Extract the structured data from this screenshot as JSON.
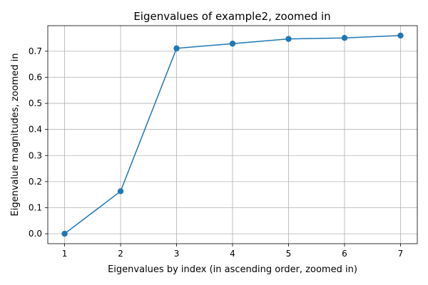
{
  "chart_data": {
    "type": "line",
    "title": "Eigenvalues of example2, zoomed in",
    "xlabel": "Eigenvalues by index (in ascending order, zoomed in)",
    "ylabel": "Eigenvalue magnitudes, zoomed in",
    "x": [
      1,
      2,
      3,
      4,
      5,
      6,
      7
    ],
    "series": [
      {
        "values": [
          0.0,
          0.163,
          0.711,
          0.729,
          0.747,
          0.751,
          0.76
        ],
        "color": "#1f77b4",
        "marker": "circle"
      }
    ],
    "xlim": [
      0.7,
      7.3
    ],
    "ylim": [
      -0.038,
      0.798
    ],
    "xticks": [
      1,
      2,
      3,
      4,
      5,
      6,
      7
    ],
    "yticks": [
      0.0,
      0.1,
      0.2,
      0.3,
      0.4,
      0.5,
      0.6,
      0.7
    ],
    "ytick_labels": [
      "0.0",
      "0.1",
      "0.2",
      "0.3",
      "0.4",
      "0.5",
      "0.6",
      "0.7"
    ],
    "grid": true
  }
}
